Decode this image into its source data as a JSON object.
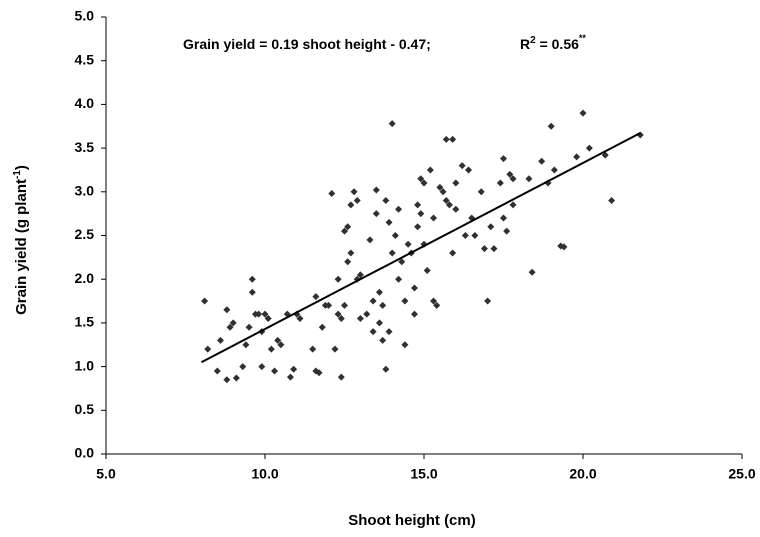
{
  "chart_data": {
    "type": "scatter",
    "annotation": {
      "left": "Grain yield = 0.19 shoot height - 0.47;",
      "r": "R",
      "r_sup": "2",
      "r_value": " = 0.56",
      "r_sig": "**"
    },
    "xlabel": "Shoot height (cm)",
    "ylabel": {
      "main": "Grain yield (g plant",
      "sup": "-1",
      "end": ")"
    },
    "color": "#303030",
    "line_color": "#000000",
    "xlim": [
      5.0,
      25.0
    ],
    "ylim": [
      0.0,
      5.0
    ],
    "xticks": [
      {
        "value": 5,
        "label": "5.0"
      },
      {
        "value": 10,
        "label": "10.0"
      },
      {
        "value": 15,
        "label": "15.0"
      },
      {
        "value": 20,
        "label": "20.0"
      },
      {
        "value": 25,
        "label": "25.0"
      }
    ],
    "yticks": [
      {
        "value": 0,
        "label": "0.0"
      },
      0.5,
      {
        "value": 1,
        "label": "1.0"
      },
      1.5,
      {
        "value": 2,
        "label": "2.0"
      },
      2.5,
      {
        "value": 3,
        "label": "3.0"
      },
      3.5,
      {
        "value": 4,
        "label": "4.0"
      },
      4.5,
      {
        "value": 5,
        "label": "5.0"
      }
    ],
    "trendline": {
      "slope": 0.19,
      "intercept": -0.47,
      "x_range": [
        8.0,
        21.8
      ]
    },
    "x": [
      8.1,
      8.2,
      8.5,
      8.6,
      8.8,
      8.9,
      8.8,
      9.0,
      9.1,
      9.3,
      9.4,
      9.5,
      9.6,
      9.6,
      9.7,
      9.8,
      9.9,
      9.9,
      10.0,
      10.1,
      10.2,
      10.3,
      10.4,
      10.5,
      10.7,
      10.8,
      10.9,
      11.0,
      11.1,
      11.5,
      11.6,
      11.6,
      11.7,
      11.8,
      11.9,
      12.0,
      12.1,
      12.2,
      12.3,
      12.3,
      12.4,
      12.4,
      12.5,
      12.6,
      12.5,
      12.6,
      12.7,
      12.7,
      12.8,
      12.9,
      12.9,
      13.0,
      13.0,
      13.2,
      13.3,
      13.4,
      13.4,
      13.5,
      13.5,
      13.6,
      13.6,
      13.7,
      13.7,
      13.8,
      13.8,
      13.9,
      13.9,
      14.0,
      14.0,
      14.1,
      14.2,
      14.2,
      14.3,
      14.4,
      14.4,
      14.5,
      14.6,
      14.7,
      14.7,
      14.8,
      14.8,
      14.9,
      14.9,
      15.0,
      15.0,
      15.1,
      15.2,
      15.3,
      15.3,
      15.4,
      15.5,
      15.6,
      15.7,
      15.7,
      15.8,
      15.9,
      15.9,
      16.0,
      16.0,
      16.2,
      16.3,
      16.4,
      16.5,
      16.6,
      16.8,
      16.9,
      17.0,
      17.1,
      17.2,
      17.4,
      17.5,
      17.5,
      17.6,
      17.7,
      17.8,
      17.8,
      18.3,
      18.4,
      18.7,
      18.9,
      19.0,
      19.1,
      19.3,
      19.4,
      19.8,
      20.0,
      20.2,
      20.7,
      20.9,
      21.8
    ],
    "values": [
      1.75,
      1.2,
      0.95,
      1.3,
      0.85,
      1.45,
      1.65,
      1.5,
      0.87,
      1.0,
      1.25,
      1.45,
      2.0,
      1.85,
      1.6,
      1.6,
      1.0,
      1.4,
      1.6,
      1.55,
      1.2,
      0.95,
      1.3,
      1.25,
      1.6,
      0.88,
      0.97,
      1.6,
      1.55,
      1.2,
      1.8,
      0.95,
      0.93,
      1.45,
      1.7,
      1.7,
      2.98,
      1.2,
      2.0,
      1.6,
      1.55,
      0.88,
      1.7,
      2.6,
      2.55,
      2.2,
      2.3,
      2.85,
      3.0,
      2.9,
      2.0,
      2.05,
      1.55,
      1.6,
      2.45,
      1.75,
      1.4,
      3.02,
      2.75,
      1.5,
      1.85,
      1.7,
      1.3,
      2.9,
      0.97,
      2.65,
      1.4,
      3.78,
      2.3,
      2.5,
      2.8,
      2.0,
      2.2,
      1.75,
      1.25,
      2.4,
      2.3,
      1.9,
      1.6,
      2.6,
      2.85,
      3.15,
      2.75,
      3.1,
      2.4,
      2.1,
      3.25,
      2.7,
      1.75,
      1.7,
      3.05,
      3.0,
      3.6,
      2.9,
      2.85,
      3.6,
      2.3,
      3.1,
      2.8,
      3.3,
      2.5,
      3.25,
      2.7,
      2.5,
      3.0,
      2.35,
      1.75,
      2.6,
      2.35,
      3.1,
      3.38,
      2.7,
      2.55,
      3.2,
      3.15,
      2.85,
      3.15,
      2.08,
      3.35,
      3.1,
      3.75,
      3.25,
      2.38,
      2.37,
      3.4,
      3.9,
      3.5,
      3.42,
      2.9,
      3.65
    ]
  }
}
